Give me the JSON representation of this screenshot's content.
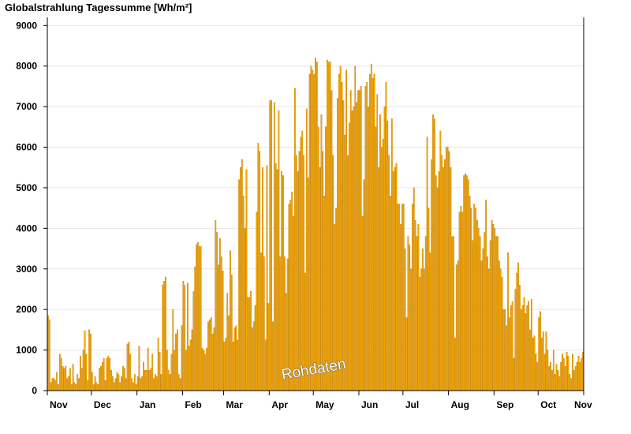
{
  "chart_data": {
    "type": "bar",
    "title": "Globalstrahlung Tagessumme [Wh/m²]",
    "xlabel": "",
    "ylabel": "",
    "ylim": [
      0,
      9200
    ],
    "y_ticks": [
      0,
      1000,
      2000,
      3000,
      4000,
      5000,
      6000,
      7000,
      8000,
      9000
    ],
    "months": [
      {
        "label": "Nov",
        "days": 30,
        "values": [
          1850,
          1750,
          200,
          300,
          300,
          250,
          450,
          150,
          900,
          800,
          600,
          550,
          600,
          300,
          350,
          550,
          150,
          650,
          200,
          150,
          400,
          300,
          850,
          550,
          1000,
          1480,
          900,
          250,
          1500,
          1400
        ]
      },
      {
        "label": "Dec",
        "days": 31,
        "values": [
          450,
          150,
          350,
          200,
          150,
          550,
          600,
          700,
          800,
          250,
          800,
          850,
          800,
          500,
          350,
          200,
          300,
          450,
          400,
          200,
          350,
          600,
          550,
          300,
          1150,
          1200,
          900,
          300,
          200,
          400,
          150
        ]
      },
      {
        "label": "Jan",
        "days": 31,
        "values": [
          350,
          1100,
          300,
          350,
          700,
          500,
          500,
          1050,
          500,
          550,
          900,
          300,
          400,
          350,
          1300,
          950,
          400,
          2600,
          2700,
          2800,
          1000,
          500,
          400,
          900,
          2000,
          1000,
          1400,
          1500,
          400,
          300,
          1600
        ]
      },
      {
        "label": "Feb",
        "days": 28,
        "values": [
          2700,
          2600,
          1000,
          2650,
          1100,
          1250,
          1500,
          2450,
          3050,
          3600,
          3650,
          3550,
          3550,
          1050,
          1000,
          900,
          1050,
          1700,
          1750,
          1800,
          1400,
          1550,
          4200,
          3900,
          3100,
          3750,
          3300,
          2950
        ]
      },
      {
        "label": "Mar",
        "days": 31,
        "values": [
          1200,
          1300,
          2400,
          1850,
          3450,
          2850,
          1200,
          1550,
          1600,
          1250,
          5200,
          5500,
          5700,
          4800,
          4000,
          5450,
          2300,
          2300,
          2450,
          1550,
          1700,
          2100,
          4400,
          6100,
          5900,
          3400,
          5500,
          3300,
          1250,
          5550,
          2150
        ]
      },
      {
        "label": "Apr",
        "days": 30,
        "values": [
          7150,
          7150,
          1700,
          7100,
          5600,
          5450,
          6900,
          3300,
          5400,
          5300,
          3300,
          2400,
          3250,
          4600,
          4700,
          4900,
          4300,
          7450,
          5800,
          5400,
          5900,
          6250,
          6400,
          5800,
          2900,
          6950,
          5250,
          7800,
          8000,
          7900
        ]
      },
      {
        "label": "May",
        "days": 31,
        "values": [
          7800,
          8200,
          8100,
          6500,
          5500,
          6800,
          5900,
          4800,
          6500,
          8150,
          8100,
          8100,
          7400,
          5800,
          4100,
          4500,
          7200,
          7800,
          8000,
          7600,
          7150,
          6300,
          7900,
          5800,
          6600,
          7400,
          6900,
          7000,
          8000,
          7100,
          7400
        ]
      },
      {
        "label": "Jun",
        "days": 30,
        "values": [
          7400,
          7500,
          4300,
          5200,
          7500,
          7600,
          7000,
          7800,
          8050,
          7700,
          7800,
          6500,
          7300,
          5500,
          6800,
          6000,
          6200,
          7000,
          7600,
          6650,
          5800,
          4800,
          6700,
          5400,
          5500,
          5600,
          4600,
          4600,
          4100,
          4600
        ]
      },
      {
        "label": "Jul",
        "days": 31,
        "values": [
          4600,
          3500,
          1800,
          3800,
          3600,
          3000,
          4600,
          5000,
          4200,
          3800,
          4100,
          2800,
          3000,
          3500,
          3000,
          3800,
          6250,
          4500,
          3400,
          5700,
          6800,
          6700,
          5300,
          5000,
          5400,
          6400,
          5800,
          5500,
          5700,
          6000,
          6000
        ]
      },
      {
        "label": "Aug",
        "days": 31,
        "values": [
          5900,
          5500,
          3800,
          3800,
          1300,
          3100,
          3200,
          4400,
          4550,
          4400,
          5300,
          5350,
          5300,
          5200,
          4800,
          4500,
          3700,
          4600,
          4500,
          4200,
          4000,
          3800,
          3200,
          3500,
          3900,
          4700,
          3300,
          3000,
          3700,
          4200,
          4100
        ]
      },
      {
        "label": "Sep",
        "days": 30,
        "values": [
          4000,
          3800,
          3800,
          3200,
          3000,
          2800,
          2000,
          2000,
          1600,
          3400,
          1800,
          2100,
          2200,
          800,
          2500,
          2900,
          3150,
          2600,
          2000,
          2100,
          2300,
          1900,
          2100,
          2200,
          1500,
          2250,
          1300,
          1350,
          900,
          700
        ]
      },
      {
        "label": "Oct",
        "days": 31,
        "values": [
          1800,
          1950,
          1300,
          1450,
          900,
          1450,
          1000,
          600,
          700,
          500,
          1000,
          400,
          650,
          500,
          350,
          700,
          900,
          800,
          600,
          950,
          850,
          400,
          300,
          900,
          500,
          600,
          700,
          850,
          700,
          800,
          950
        ]
      },
      {
        "label": "Nov",
        "days": 0,
        "values": []
      }
    ],
    "grid": true,
    "watermark": "Rohdaten",
    "bar_color": "#f7a800"
  }
}
